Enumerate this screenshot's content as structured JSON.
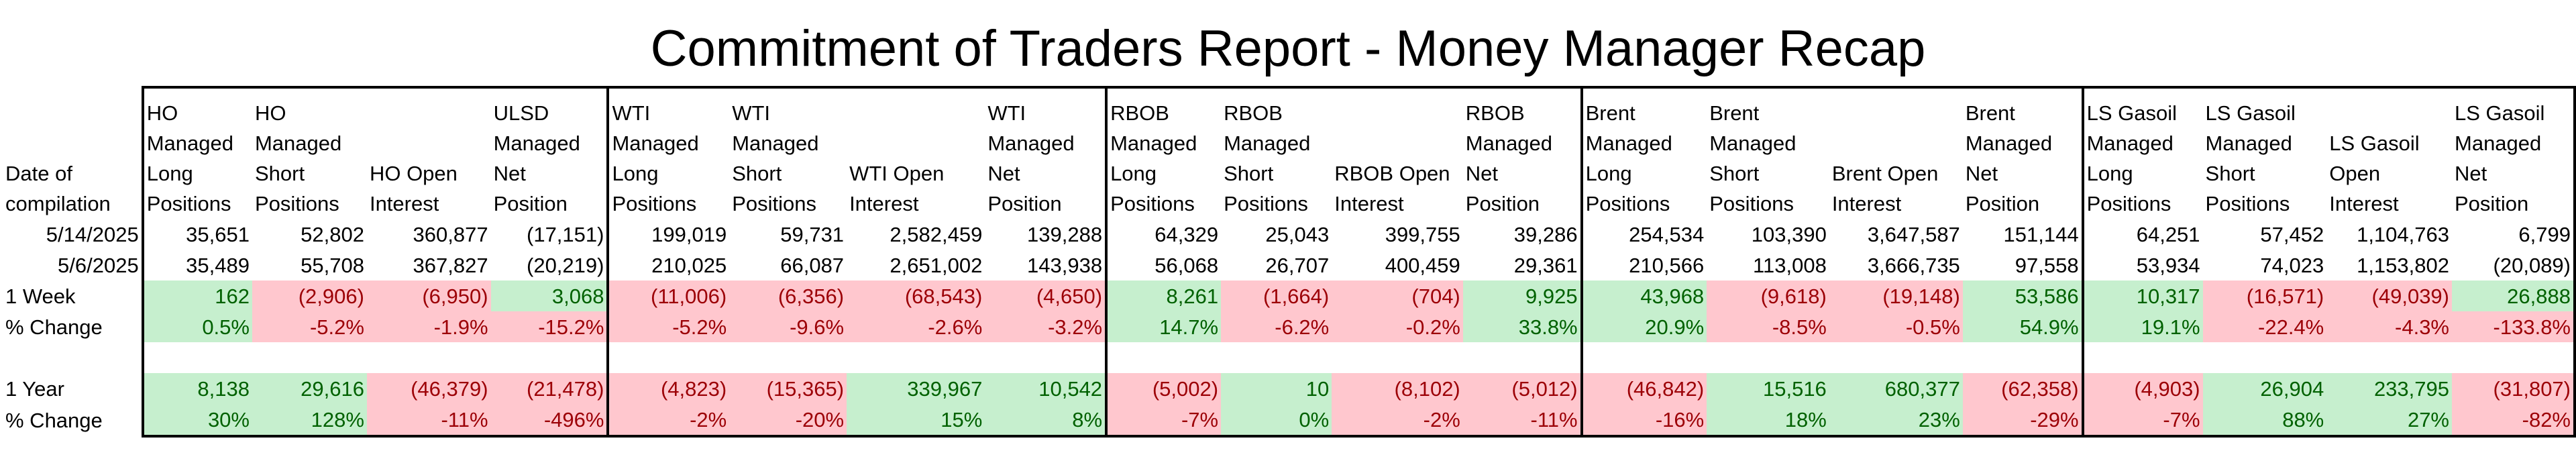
{
  "title": "Commitment of Traders Report - Money Manager Recap",
  "row_labels": {
    "date_header": [
      "Date of",
      "compilation"
    ],
    "week_change": "1 Week",
    "week_pct": "% Change",
    "year_change": "1 Year",
    "year_pct": "% Change"
  },
  "columns": [
    {
      "header": [
        "HO",
        "Managed",
        "Long",
        "Positions"
      ],
      "d1_date": "5/14/2025",
      "d1": "35,651",
      "d2_date": "5/6/2025",
      "d2": "35,489",
      "w": "162",
      "w_s": "pos",
      "wp": "0.5%",
      "wp_s": "pos",
      "y": "8,138",
      "y_s": "pos",
      "yp": "30%",
      "yp_s": "pos"
    },
    {
      "header": [
        "HO",
        "Managed",
        "Short",
        "Positions"
      ],
      "d1": "52,802",
      "d2": "55,708",
      "w": "(2,906)",
      "w_s": "neg",
      "wp": "-5.2%",
      "wp_s": "neg",
      "y": "29,616",
      "y_s": "pos",
      "yp": "128%",
      "yp_s": "pos"
    },
    {
      "header": [
        "",
        "",
        "HO Open",
        "Interest"
      ],
      "d1": "360,877",
      "d2": "367,827",
      "w": "(6,950)",
      "w_s": "neg",
      "wp": "-1.9%",
      "wp_s": "neg",
      "y": "(46,379)",
      "y_s": "neg",
      "yp": "-11%",
      "yp_s": "neg"
    },
    {
      "header": [
        "ULSD",
        "Managed",
        "Net",
        "Position"
      ],
      "d1": "(17,151)",
      "d2": "(20,219)",
      "w": "3,068",
      "w_s": "pos",
      "wp": "-15.2%",
      "wp_s": "neg",
      "y": "(21,478)",
      "y_s": "neg",
      "yp": "-496%",
      "yp_s": "neg"
    },
    {
      "header": [
        "WTI",
        "Managed",
        "Long",
        "Positions"
      ],
      "d1": "199,019",
      "d2": "210,025",
      "w": "(11,006)",
      "w_s": "neg",
      "wp": "-5.2%",
      "wp_s": "neg",
      "y": "(4,823)",
      "y_s": "neg",
      "yp": "-2%",
      "yp_s": "neg"
    },
    {
      "header": [
        "WTI",
        "Managed",
        "Short",
        "Positions"
      ],
      "d1": "59,731",
      "d2": "66,087",
      "w": "(6,356)",
      "w_s": "neg",
      "wp": "-9.6%",
      "wp_s": "neg",
      "y": "(15,365)",
      "y_s": "neg",
      "yp": "-20%",
      "yp_s": "neg"
    },
    {
      "header": [
        "",
        "",
        "WTI Open",
        "Interest"
      ],
      "d1": "2,582,459",
      "d2": "2,651,002",
      "w": "(68,543)",
      "w_s": "neg",
      "wp": "-2.6%",
      "wp_s": "neg",
      "y": "339,967",
      "y_s": "pos",
      "yp": "15%",
      "yp_s": "pos"
    },
    {
      "header": [
        "WTI",
        "Managed",
        "Net",
        "Position"
      ],
      "d1": "139,288",
      "d2": "143,938",
      "w": "(4,650)",
      "w_s": "neg",
      "wp": "-3.2%",
      "wp_s": "neg",
      "y": "10,542",
      "y_s": "pos",
      "yp": "8%",
      "yp_s": "pos"
    },
    {
      "header": [
        "RBOB",
        "Managed",
        "Long",
        "Positions"
      ],
      "d1": "64,329",
      "d2": "56,068",
      "w": "8,261",
      "w_s": "pos",
      "wp": "14.7%",
      "wp_s": "pos",
      "y": "(5,002)",
      "y_s": "neg",
      "yp": "-7%",
      "yp_s": "neg"
    },
    {
      "header": [
        "RBOB",
        "Managed",
        "Short",
        "Positions"
      ],
      "d1": "25,043",
      "d2": "26,707",
      "w": "(1,664)",
      "w_s": "neg",
      "wp": "-6.2%",
      "wp_s": "neg",
      "y": "10",
      "y_s": "pos",
      "yp": "0%",
      "yp_s": "pos"
    },
    {
      "header": [
        "",
        "",
        "RBOB Open",
        "Interest"
      ],
      "d1": "399,755",
      "d2": "400,459",
      "w": "(704)",
      "w_s": "neg",
      "wp": "-0.2%",
      "wp_s": "neg",
      "y": "(8,102)",
      "y_s": "neg",
      "yp": "-2%",
      "yp_s": "neg"
    },
    {
      "header": [
        "RBOB",
        "Managed",
        "Net",
        "Position"
      ],
      "d1": "39,286",
      "d2": "29,361",
      "w": "9,925",
      "w_s": "pos",
      "wp": "33.8%",
      "wp_s": "pos",
      "y": "(5,012)",
      "y_s": "neg",
      "yp": "-11%",
      "yp_s": "neg"
    },
    {
      "header": [
        "Brent",
        "Managed",
        "Long",
        "Positions"
      ],
      "d1": "254,534",
      "d2": "210,566",
      "w": "43,968",
      "w_s": "pos",
      "wp": "20.9%",
      "wp_s": "pos",
      "y": "(46,842)",
      "y_s": "neg",
      "yp": "-16%",
      "yp_s": "neg"
    },
    {
      "header": [
        "Brent",
        "Managed",
        "Short",
        "Positions"
      ],
      "d1": "103,390",
      "d2": "113,008",
      "w": "(9,618)",
      "w_s": "neg",
      "wp": "-8.5%",
      "wp_s": "neg",
      "y": "15,516",
      "y_s": "pos",
      "yp": "18%",
      "yp_s": "pos"
    },
    {
      "header": [
        "",
        "",
        "Brent Open",
        "Interest"
      ],
      "d1": "3,647,587",
      "d2": "3,666,735",
      "w": "(19,148)",
      "w_s": "neg",
      "wp": "-0.5%",
      "wp_s": "neg",
      "y": "680,377",
      "y_s": "pos",
      "yp": "23%",
      "yp_s": "pos"
    },
    {
      "header": [
        "Brent",
        "Managed",
        "Net",
        "Position"
      ],
      "d1": "151,144",
      "d2": "97,558",
      "w": "53,586",
      "w_s": "pos",
      "wp": "54.9%",
      "wp_s": "pos",
      "y": "(62,358)",
      "y_s": "neg",
      "yp": "-29%",
      "yp_s": "neg"
    },
    {
      "header": [
        "LS Gasoil",
        "Managed",
        "Long",
        "Positions"
      ],
      "d1": "64,251",
      "d2": "53,934",
      "w": "10,317",
      "w_s": "pos",
      "wp": "19.1%",
      "wp_s": "pos",
      "y": "(4,903)",
      "y_s": "neg",
      "yp": "-7%",
      "yp_s": "neg"
    },
    {
      "header": [
        "LS Gasoil",
        "Managed",
        "Short",
        "Positions"
      ],
      "d1": "57,452",
      "d2": "74,023",
      "w": "(16,571)",
      "w_s": "neg",
      "wp": "-22.4%",
      "wp_s": "neg",
      "y": "26,904",
      "y_s": "pos",
      "yp": "88%",
      "yp_s": "pos"
    },
    {
      "header": [
        "",
        "LS Gasoil",
        "Open",
        "Interest"
      ],
      "d1": "1,104,763",
      "d2": "1,153,802",
      "w": "(49,039)",
      "w_s": "neg",
      "wp": "-4.3%",
      "wp_s": "neg",
      "y": "233,795",
      "y_s": "pos",
      "yp": "27%",
      "yp_s": "pos"
    },
    {
      "header": [
        "LS Gasoil",
        "Managed",
        "Net",
        "Position"
      ],
      "d1": "6,799",
      "d2": "(20,089)",
      "w": "26,888",
      "w_s": "pos",
      "wp": "-133.8%",
      "wp_s": "neg",
      "y": "(31,807)",
      "y_s": "neg",
      "yp": "-82%",
      "yp_s": "neg"
    }
  ],
  "dates": {
    "current": "5/14/2025",
    "previous": "5/6/2025"
  },
  "colors": {
    "positive_fill": "#c6efce",
    "positive_text": "#006100",
    "negative_fill": "#ffc7ce",
    "negative_text": "#9c0006",
    "border": "#000000"
  }
}
